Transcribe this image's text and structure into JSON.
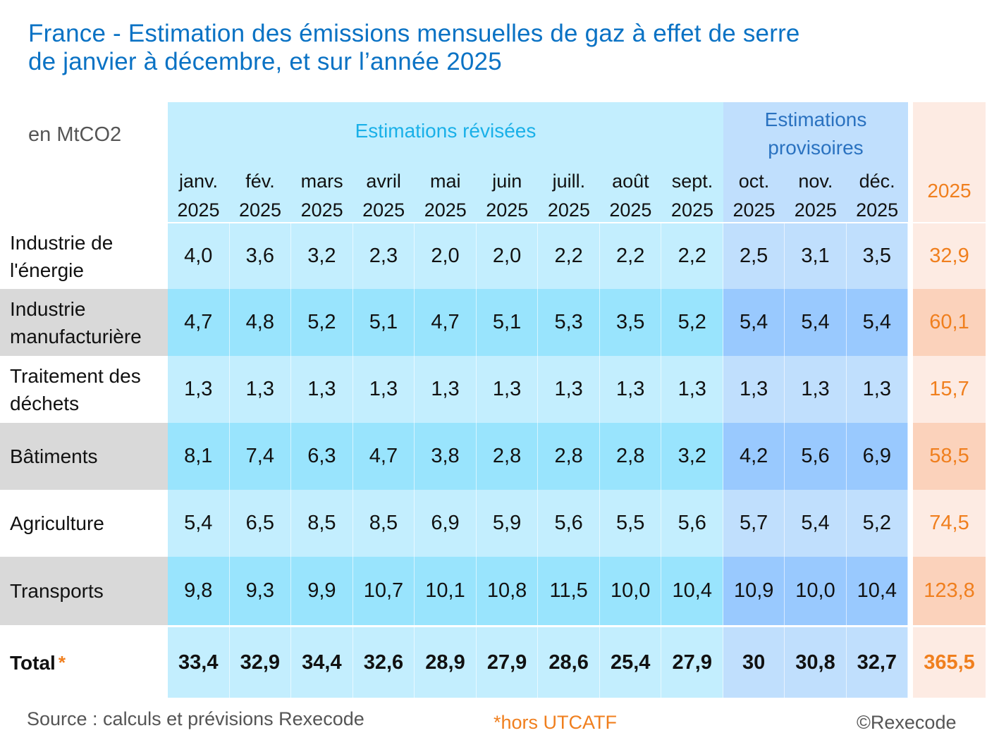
{
  "title_line1": "France - Estimation des émissions mensuelles de gaz à effet de serre",
  "title_line2": "de janvier à décembre, et sur l’année 2025",
  "unit": "en MtCO2",
  "group_revised": "Estimations révisées",
  "group_provisional_line1": "Estimations",
  "group_provisional_line2": "provisoires",
  "annual_header": "2025",
  "total_star": "*",
  "footer": {
    "source": "Source : calculs et prévisions Rexecode",
    "note": "*hors UTCATF",
    "copyright": "©Rexecode"
  },
  "colors": {
    "title": "#0a72c4",
    "revised_light": "#c3eefe",
    "revised_dark": "#99e4fd",
    "provisional_light": "#c0dffd",
    "provisional_dark": "#99c9fe",
    "annual_light": "#fdebe3",
    "annual_dark": "#fbd2bb",
    "annual_text": "#f07f1e",
    "label_grey": "#d9d9d9"
  },
  "chart_data": {
    "type": "table",
    "title": "France - Estimation des émissions mensuelles de gaz à effet de serre de janvier à décembre, et sur l’année 2025",
    "unit": "en MtCO2",
    "columns": [
      {
        "month": "janv.",
        "year": "2025",
        "group": "revised"
      },
      {
        "month": "fév.",
        "year": "2025",
        "group": "revised"
      },
      {
        "month": "mars",
        "year": "2025",
        "group": "revised"
      },
      {
        "month": "avril",
        "year": "2025",
        "group": "revised"
      },
      {
        "month": "mai",
        "year": "2025",
        "group": "revised"
      },
      {
        "month": "juin",
        "year": "2025",
        "group": "revised"
      },
      {
        "month": "juill.",
        "year": "2025",
        "group": "revised"
      },
      {
        "month": "août",
        "year": "2025",
        "group": "revised"
      },
      {
        "month": "sept.",
        "year": "2025",
        "group": "revised"
      },
      {
        "month": "oct.",
        "year": "2025",
        "group": "provisional"
      },
      {
        "month": "nov.",
        "year": "2025",
        "group": "provisional"
      },
      {
        "month": "déc.",
        "year": "2025",
        "group": "provisional"
      }
    ],
    "rows": [
      {
        "label": "Industrie de l'énergie",
        "label_lines": [
          "Industrie de",
          "l'énergie"
        ],
        "values": [
          "4,0",
          "3,6",
          "3,2",
          "2,3",
          "2,0",
          "2,0",
          "2,2",
          "2,2",
          "2,2",
          "2,5",
          "3,1",
          "3,5"
        ],
        "annual": "32,9"
      },
      {
        "label": "Industrie manufacturière",
        "label_lines": [
          "Industrie",
          "manufacturière"
        ],
        "values": [
          "4,7",
          "4,8",
          "5,2",
          "5,1",
          "4,7",
          "5,1",
          "5,3",
          "3,5",
          "5,2",
          "5,4",
          "5,4",
          "5,4"
        ],
        "annual": "60,1"
      },
      {
        "label": "Traitement des déchets",
        "label_lines": [
          "Traitement des",
          "déchets"
        ],
        "values": [
          "1,3",
          "1,3",
          "1,3",
          "1,3",
          "1,3",
          "1,3",
          "1,3",
          "1,3",
          "1,3",
          "1,3",
          "1,3",
          "1,3"
        ],
        "annual": "15,7"
      },
      {
        "label": "Bâtiments",
        "label_lines": [
          "Bâtiments"
        ],
        "values": [
          "8,1",
          "7,4",
          "6,3",
          "4,7",
          "3,8",
          "2,8",
          "2,8",
          "2,8",
          "3,2",
          "4,2",
          "5,6",
          "6,9"
        ],
        "annual": "58,5"
      },
      {
        "label": "Agriculture",
        "label_lines": [
          "Agriculture"
        ],
        "values": [
          "5,4",
          "6,5",
          "8,5",
          "8,5",
          "6,9",
          "5,9",
          "5,6",
          "5,5",
          "5,6",
          "5,7",
          "5,4",
          "5,2"
        ],
        "annual": "74,5"
      },
      {
        "label": "Transports",
        "label_lines": [
          "Transports"
        ],
        "values": [
          "9,8",
          "9,3",
          "9,9",
          "10,7",
          "10,1",
          "10,8",
          "11,5",
          "10,0",
          "10,4",
          "10,9",
          "10,0",
          "10,4"
        ],
        "annual": "123,8"
      }
    ],
    "total": {
      "label": "Total",
      "values": [
        "33,4",
        "32,9",
        "34,4",
        "32,6",
        "28,9",
        "27,9",
        "28,6",
        "25,4",
        "27,9",
        "30",
        "30,8",
        "32,7"
      ],
      "annual": "365,5"
    }
  }
}
